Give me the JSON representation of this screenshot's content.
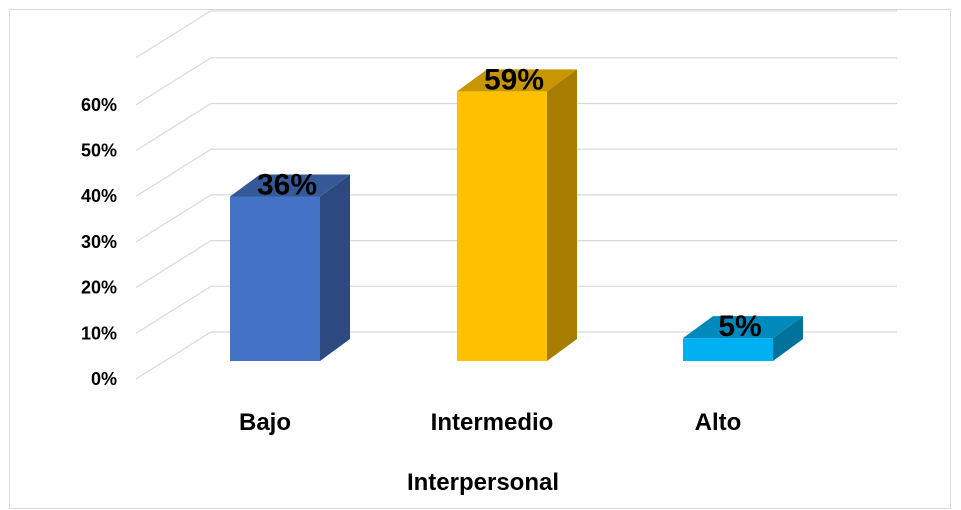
{
  "chart_data": {
    "type": "bar",
    "style": "3d-column",
    "categories": [
      "Bajo",
      "Intermedio",
      "Alto"
    ],
    "values": [
      36,
      59,
      5
    ],
    "data_labels": [
      "36%",
      "59%",
      "5%"
    ],
    "colors": [
      "#4472c4",
      "#ffc000",
      "#00b0f0"
    ],
    "xlabel": "Interpersonal",
    "ylabel": "",
    "ylim": [
      0,
      60
    ],
    "y_ticks": [
      "0%",
      "10%",
      "20%",
      "30%",
      "40%",
      "50%",
      "60%"
    ],
    "grid": true,
    "legend": "none"
  }
}
